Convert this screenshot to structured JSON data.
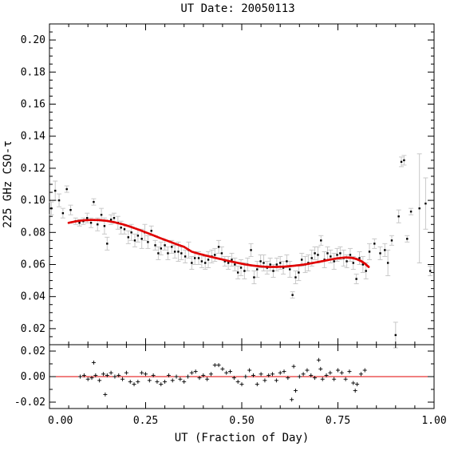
{
  "chart_data": [
    {
      "panel": "main",
      "type": "scatter",
      "title": "UT Date: 20050113",
      "xlabel": "UT (Fraction of Day)",
      "ylabel": "225 GHz CSO-τ",
      "xlim": [
        0.0,
        1.0
      ],
      "ylim": [
        0.01,
        0.21
      ],
      "yticks": [
        "0.02",
        "0.04",
        "0.06",
        "0.08",
        "0.10",
        "0.12",
        "0.14",
        "0.16",
        "0.18",
        "0.20"
      ],
      "grid": false,
      "colors": {
        "points": "#000000",
        "errorbars": "#c8c8c8",
        "fit": "#e00000"
      },
      "series": [
        {
          "role": "measurements with error bars",
          "points": [
            {
              "x": 0.005,
              "y": 0.095,
              "e": 0.004
            },
            {
              "x": 0.015,
              "y": 0.106,
              "e": 0.006
            },
            {
              "x": 0.025,
              "y": 0.1,
              "e": 0.004
            },
            {
              "x": 0.035,
              "y": 0.092,
              "e": 0.003
            },
            {
              "x": 0.045,
              "y": 0.107,
              "e": 0.002
            },
            {
              "x": 0.055,
              "y": 0.094,
              "e": 0.003
            },
            {
              "x": 0.068,
              "y": 0.087,
              "e": 0.002
            },
            {
              "x": 0.078,
              "y": 0.086,
              "e": 0.002
            },
            {
              "x": 0.088,
              "y": 0.087,
              "e": 0.002
            },
            {
              "x": 0.098,
              "y": 0.089,
              "e": 0.003
            },
            {
              "x": 0.108,
              "y": 0.086,
              "e": 0.003
            },
            {
              "x": 0.115,
              "y": 0.099,
              "e": 0.002
            },
            {
              "x": 0.125,
              "y": 0.085,
              "e": 0.004
            },
            {
              "x": 0.135,
              "y": 0.091,
              "e": 0.004
            },
            {
              "x": 0.143,
              "y": 0.084,
              "e": 0.005
            },
            {
              "x": 0.15,
              "y": 0.073,
              "e": 0.004
            },
            {
              "x": 0.16,
              "y": 0.088,
              "e": 0.003
            },
            {
              "x": 0.168,
              "y": 0.089,
              "e": 0.003
            },
            {
              "x": 0.178,
              "y": 0.086,
              "e": 0.004
            },
            {
              "x": 0.186,
              "y": 0.083,
              "e": 0.004
            },
            {
              "x": 0.195,
              "y": 0.082,
              "e": 0.003
            },
            {
              "x": 0.205,
              "y": 0.077,
              "e": 0.004
            },
            {
              "x": 0.213,
              "y": 0.08,
              "e": 0.005
            },
            {
              "x": 0.222,
              "y": 0.075,
              "e": 0.004
            },
            {
              "x": 0.23,
              "y": 0.078,
              "e": 0.004
            },
            {
              "x": 0.24,
              "y": 0.076,
              "e": 0.006
            },
            {
              "x": 0.248,
              "y": 0.08,
              "e": 0.005
            },
            {
              "x": 0.256,
              "y": 0.074,
              "e": 0.004
            },
            {
              "x": 0.265,
              "y": 0.081,
              "e": 0.003
            },
            {
              "x": 0.275,
              "y": 0.072,
              "e": 0.003
            },
            {
              "x": 0.283,
              "y": 0.067,
              "e": 0.004
            },
            {
              "x": 0.29,
              "y": 0.07,
              "e": 0.004
            },
            {
              "x": 0.3,
              "y": 0.072,
              "e": 0.003
            },
            {
              "x": 0.308,
              "y": 0.067,
              "e": 0.004
            },
            {
              "x": 0.318,
              "y": 0.071,
              "e": 0.004
            },
            {
              "x": 0.326,
              "y": 0.068,
              "e": 0.004
            },
            {
              "x": 0.335,
              "y": 0.068,
              "e": 0.006
            },
            {
              "x": 0.343,
              "y": 0.067,
              "e": 0.004
            },
            {
              "x": 0.353,
              "y": 0.065,
              "e": 0.004
            },
            {
              "x": 0.362,
              "y": 0.069,
              "e": 0.005
            },
            {
              "x": 0.37,
              "y": 0.061,
              "e": 0.004
            },
            {
              "x": 0.378,
              "y": 0.064,
              "e": 0.004
            },
            {
              "x": 0.388,
              "y": 0.064,
              "e": 0.004
            },
            {
              "x": 0.396,
              "y": 0.062,
              "e": 0.004
            },
            {
              "x": 0.405,
              "y": 0.061,
              "e": 0.004
            },
            {
              "x": 0.413,
              "y": 0.063,
              "e": 0.005
            },
            {
              "x": 0.422,
              "y": 0.065,
              "e": 0.004
            },
            {
              "x": 0.43,
              "y": 0.066,
              "e": 0.004
            },
            {
              "x": 0.44,
              "y": 0.071,
              "e": 0.004
            },
            {
              "x": 0.448,
              "y": 0.067,
              "e": 0.004
            },
            {
              "x": 0.456,
              "y": 0.062,
              "e": 0.003
            },
            {
              "x": 0.465,
              "y": 0.061,
              "e": 0.004
            },
            {
              "x": 0.474,
              "y": 0.063,
              "e": 0.004
            },
            {
              "x": 0.482,
              "y": 0.06,
              "e": 0.004
            },
            {
              "x": 0.49,
              "y": 0.055,
              "e": 0.004
            },
            {
              "x": 0.498,
              "y": 0.058,
              "e": 0.005
            },
            {
              "x": 0.507,
              "y": 0.056,
              "e": 0.005
            },
            {
              "x": 0.515,
              "y": 0.06,
              "e": 0.004
            },
            {
              "x": 0.524,
              "y": 0.069,
              "e": 0.004
            },
            {
              "x": 0.532,
              "y": 0.052,
              "e": 0.004
            },
            {
              "x": 0.54,
              "y": 0.057,
              "e": 0.005
            },
            {
              "x": 0.549,
              "y": 0.062,
              "e": 0.004
            },
            {
              "x": 0.557,
              "y": 0.061,
              "e": 0.005
            },
            {
              "x": 0.566,
              "y": 0.058,
              "e": 0.004
            },
            {
              "x": 0.574,
              "y": 0.06,
              "e": 0.004
            },
            {
              "x": 0.582,
              "y": 0.056,
              "e": 0.004
            },
            {
              "x": 0.591,
              "y": 0.06,
              "e": 0.004
            },
            {
              "x": 0.6,
              "y": 0.061,
              "e": 0.004
            },
            {
              "x": 0.608,
              "y": 0.058,
              "e": 0.004
            },
            {
              "x": 0.617,
              "y": 0.062,
              "e": 0.004
            },
            {
              "x": 0.625,
              "y": 0.057,
              "e": 0.005
            },
            {
              "x": 0.632,
              "y": 0.041,
              "e": 0.002
            },
            {
              "x": 0.64,
              "y": 0.052,
              "e": 0.004
            },
            {
              "x": 0.648,
              "y": 0.055,
              "e": 0.005
            },
            {
              "x": 0.656,
              "y": 0.063,
              "e": 0.004
            },
            {
              "x": 0.665,
              "y": 0.06,
              "e": 0.005
            },
            {
              "x": 0.673,
              "y": 0.061,
              "e": 0.005
            },
            {
              "x": 0.682,
              "y": 0.064,
              "e": 0.005
            },
            {
              "x": 0.69,
              "y": 0.067,
              "e": 0.004
            },
            {
              "x": 0.698,
              "y": 0.066,
              "e": 0.005
            },
            {
              "x": 0.706,
              "y": 0.075,
              "e": 0.003
            },
            {
              "x": 0.715,
              "y": 0.063,
              "e": 0.005
            },
            {
              "x": 0.723,
              "y": 0.067,
              "e": 0.004
            },
            {
              "x": 0.731,
              "y": 0.065,
              "e": 0.004
            },
            {
              "x": 0.74,
              "y": 0.062,
              "e": 0.005
            },
            {
              "x": 0.748,
              "y": 0.066,
              "e": 0.004
            },
            {
              "x": 0.756,
              "y": 0.067,
              "e": 0.004
            },
            {
              "x": 0.765,
              "y": 0.064,
              "e": 0.005
            },
            {
              "x": 0.773,
              "y": 0.062,
              "e": 0.004
            },
            {
              "x": 0.782,
              "y": 0.066,
              "e": 0.004
            },
            {
              "x": 0.79,
              "y": 0.061,
              "e": 0.004
            },
            {
              "x": 0.798,
              "y": 0.051,
              "e": 0.003
            },
            {
              "x": 0.806,
              "y": 0.064,
              "e": 0.004
            },
            {
              "x": 0.815,
              "y": 0.06,
              "e": 0.005
            },
            {
              "x": 0.823,
              "y": 0.056,
              "e": 0.005
            },
            {
              "x": 0.832,
              "y": 0.068,
              "e": 0.005
            },
            {
              "x": 0.845,
              "y": 0.073,
              "e": 0.003
            },
            {
              "x": 0.86,
              "y": 0.067,
              "e": 0.004
            },
            {
              "x": 0.872,
              "y": 0.069,
              "e": 0.004
            },
            {
              "x": 0.88,
              "y": 0.061,
              "e": 0.008
            },
            {
              "x": 0.89,
              "y": 0.075,
              "e": 0.003
            },
            {
              "x": 0.9,
              "y": 0.016,
              "e": 0.008
            },
            {
              "x": 0.908,
              "y": 0.09,
              "e": 0.004
            },
            {
              "x": 0.915,
              "y": 0.124,
              "e": 0.003
            },
            {
              "x": 0.922,
              "y": 0.125,
              "e": 0.003
            },
            {
              "x": 0.93,
              "y": 0.076,
              "e": 0.002
            },
            {
              "x": 0.94,
              "y": 0.093,
              "e": 0.002
            },
            {
              "x": 0.962,
              "y": 0.095,
              "e": 0.034
            },
            {
              "x": 0.978,
              "y": 0.098,
              "e": 0.016
            },
            {
              "x": 0.99,
              "y": 0.056,
              "e": 0.003
            }
          ]
        },
        {
          "role": "fit curve",
          "x": [
            0.05,
            0.07,
            0.09,
            0.11,
            0.13,
            0.15,
            0.17,
            0.19,
            0.21,
            0.23,
            0.25,
            0.27,
            0.29,
            0.31,
            0.33,
            0.35,
            0.37,
            0.39,
            0.41,
            0.43,
            0.45,
            0.47,
            0.49,
            0.51,
            0.53,
            0.55,
            0.57,
            0.59,
            0.61,
            0.63,
            0.65,
            0.67,
            0.69,
            0.71,
            0.73,
            0.75,
            0.77,
            0.78,
            0.79,
            0.8,
            0.81,
            0.82,
            0.83
          ],
          "y": [
            0.086,
            0.087,
            0.0876,
            0.0878,
            0.0877,
            0.0872,
            0.0863,
            0.0851,
            0.0836,
            0.0819,
            0.0801,
            0.0782,
            0.0763,
            0.0745,
            0.0727,
            0.071,
            0.068,
            0.0666,
            0.0654,
            0.0642,
            0.0631,
            0.062,
            0.061,
            0.06,
            0.0593,
            0.0588,
            0.0585,
            0.0585,
            0.0587,
            0.0591,
            0.0596,
            0.0603,
            0.0612,
            0.0621,
            0.0631,
            0.0639,
            0.0644,
            0.0643,
            0.064,
            0.0633,
            0.0622,
            0.0606,
            0.0585
          ]
        }
      ]
    },
    {
      "panel": "residuals",
      "type": "scatter",
      "xlim": [
        0.0,
        1.0
      ],
      "ylim": [
        -0.025,
        0.025
      ],
      "yticks": [
        "-0.02",
        "0.00",
        "0.02"
      ],
      "xticks": [
        "0.00",
        "0.25",
        "0.50",
        "0.75",
        "1.00"
      ],
      "zero_line_color": "#e00000",
      "series": [
        {
          "role": "residuals",
          "x": [
            0.08,
            0.09,
            0.1,
            0.11,
            0.115,
            0.12,
            0.13,
            0.14,
            0.145,
            0.15,
            0.16,
            0.17,
            0.18,
            0.19,
            0.2,
            0.21,
            0.22,
            0.23,
            0.24,
            0.25,
            0.26,
            0.27,
            0.28,
            0.29,
            0.3,
            0.31,
            0.32,
            0.33,
            0.34,
            0.35,
            0.36,
            0.37,
            0.38,
            0.39,
            0.4,
            0.41,
            0.42,
            0.43,
            0.44,
            0.45,
            0.46,
            0.47,
            0.48,
            0.49,
            0.5,
            0.51,
            0.52,
            0.53,
            0.54,
            0.55,
            0.56,
            0.57,
            0.58,
            0.59,
            0.6,
            0.61,
            0.62,
            0.63,
            0.635,
            0.64,
            0.65,
            0.66,
            0.67,
            0.68,
            0.69,
            0.7,
            0.705,
            0.71,
            0.72,
            0.73,
            0.74,
            0.75,
            0.76,
            0.77,
            0.78,
            0.79,
            0.795,
            0.8,
            0.81,
            0.82
          ],
          "y": [
            0.0,
            0.001,
            -0.002,
            -0.001,
            0.011,
            0.001,
            -0.003,
            0.002,
            -0.014,
            0.001,
            0.003,
            0.0,
            0.001,
            -0.002,
            0.003,
            -0.004,
            -0.006,
            -0.004,
            0.003,
            0.002,
            -0.003,
            0.001,
            -0.004,
            -0.006,
            -0.004,
            0.001,
            -0.003,
            0.0,
            -0.002,
            -0.004,
            0.0,
            0.003,
            0.004,
            -0.001,
            0.001,
            -0.002,
            0.002,
            0.009,
            0.009,
            0.006,
            0.003,
            0.004,
            -0.001,
            -0.004,
            -0.006,
            0.0,
            0.005,
            0.001,
            -0.006,
            0.002,
            -0.003,
            0.001,
            0.002,
            -0.003,
            0.003,
            0.004,
            -0.001,
            -0.018,
            0.008,
            -0.011,
            0.0,
            0.002,
            0.005,
            0.001,
            -0.001,
            0.013,
            0.006,
            -0.002,
            0.001,
            0.003,
            -0.002,
            0.005,
            0.003,
            -0.002,
            0.004,
            -0.005,
            -0.011,
            -0.006,
            0.002,
            0.005
          ]
        }
      ]
    }
  ]
}
